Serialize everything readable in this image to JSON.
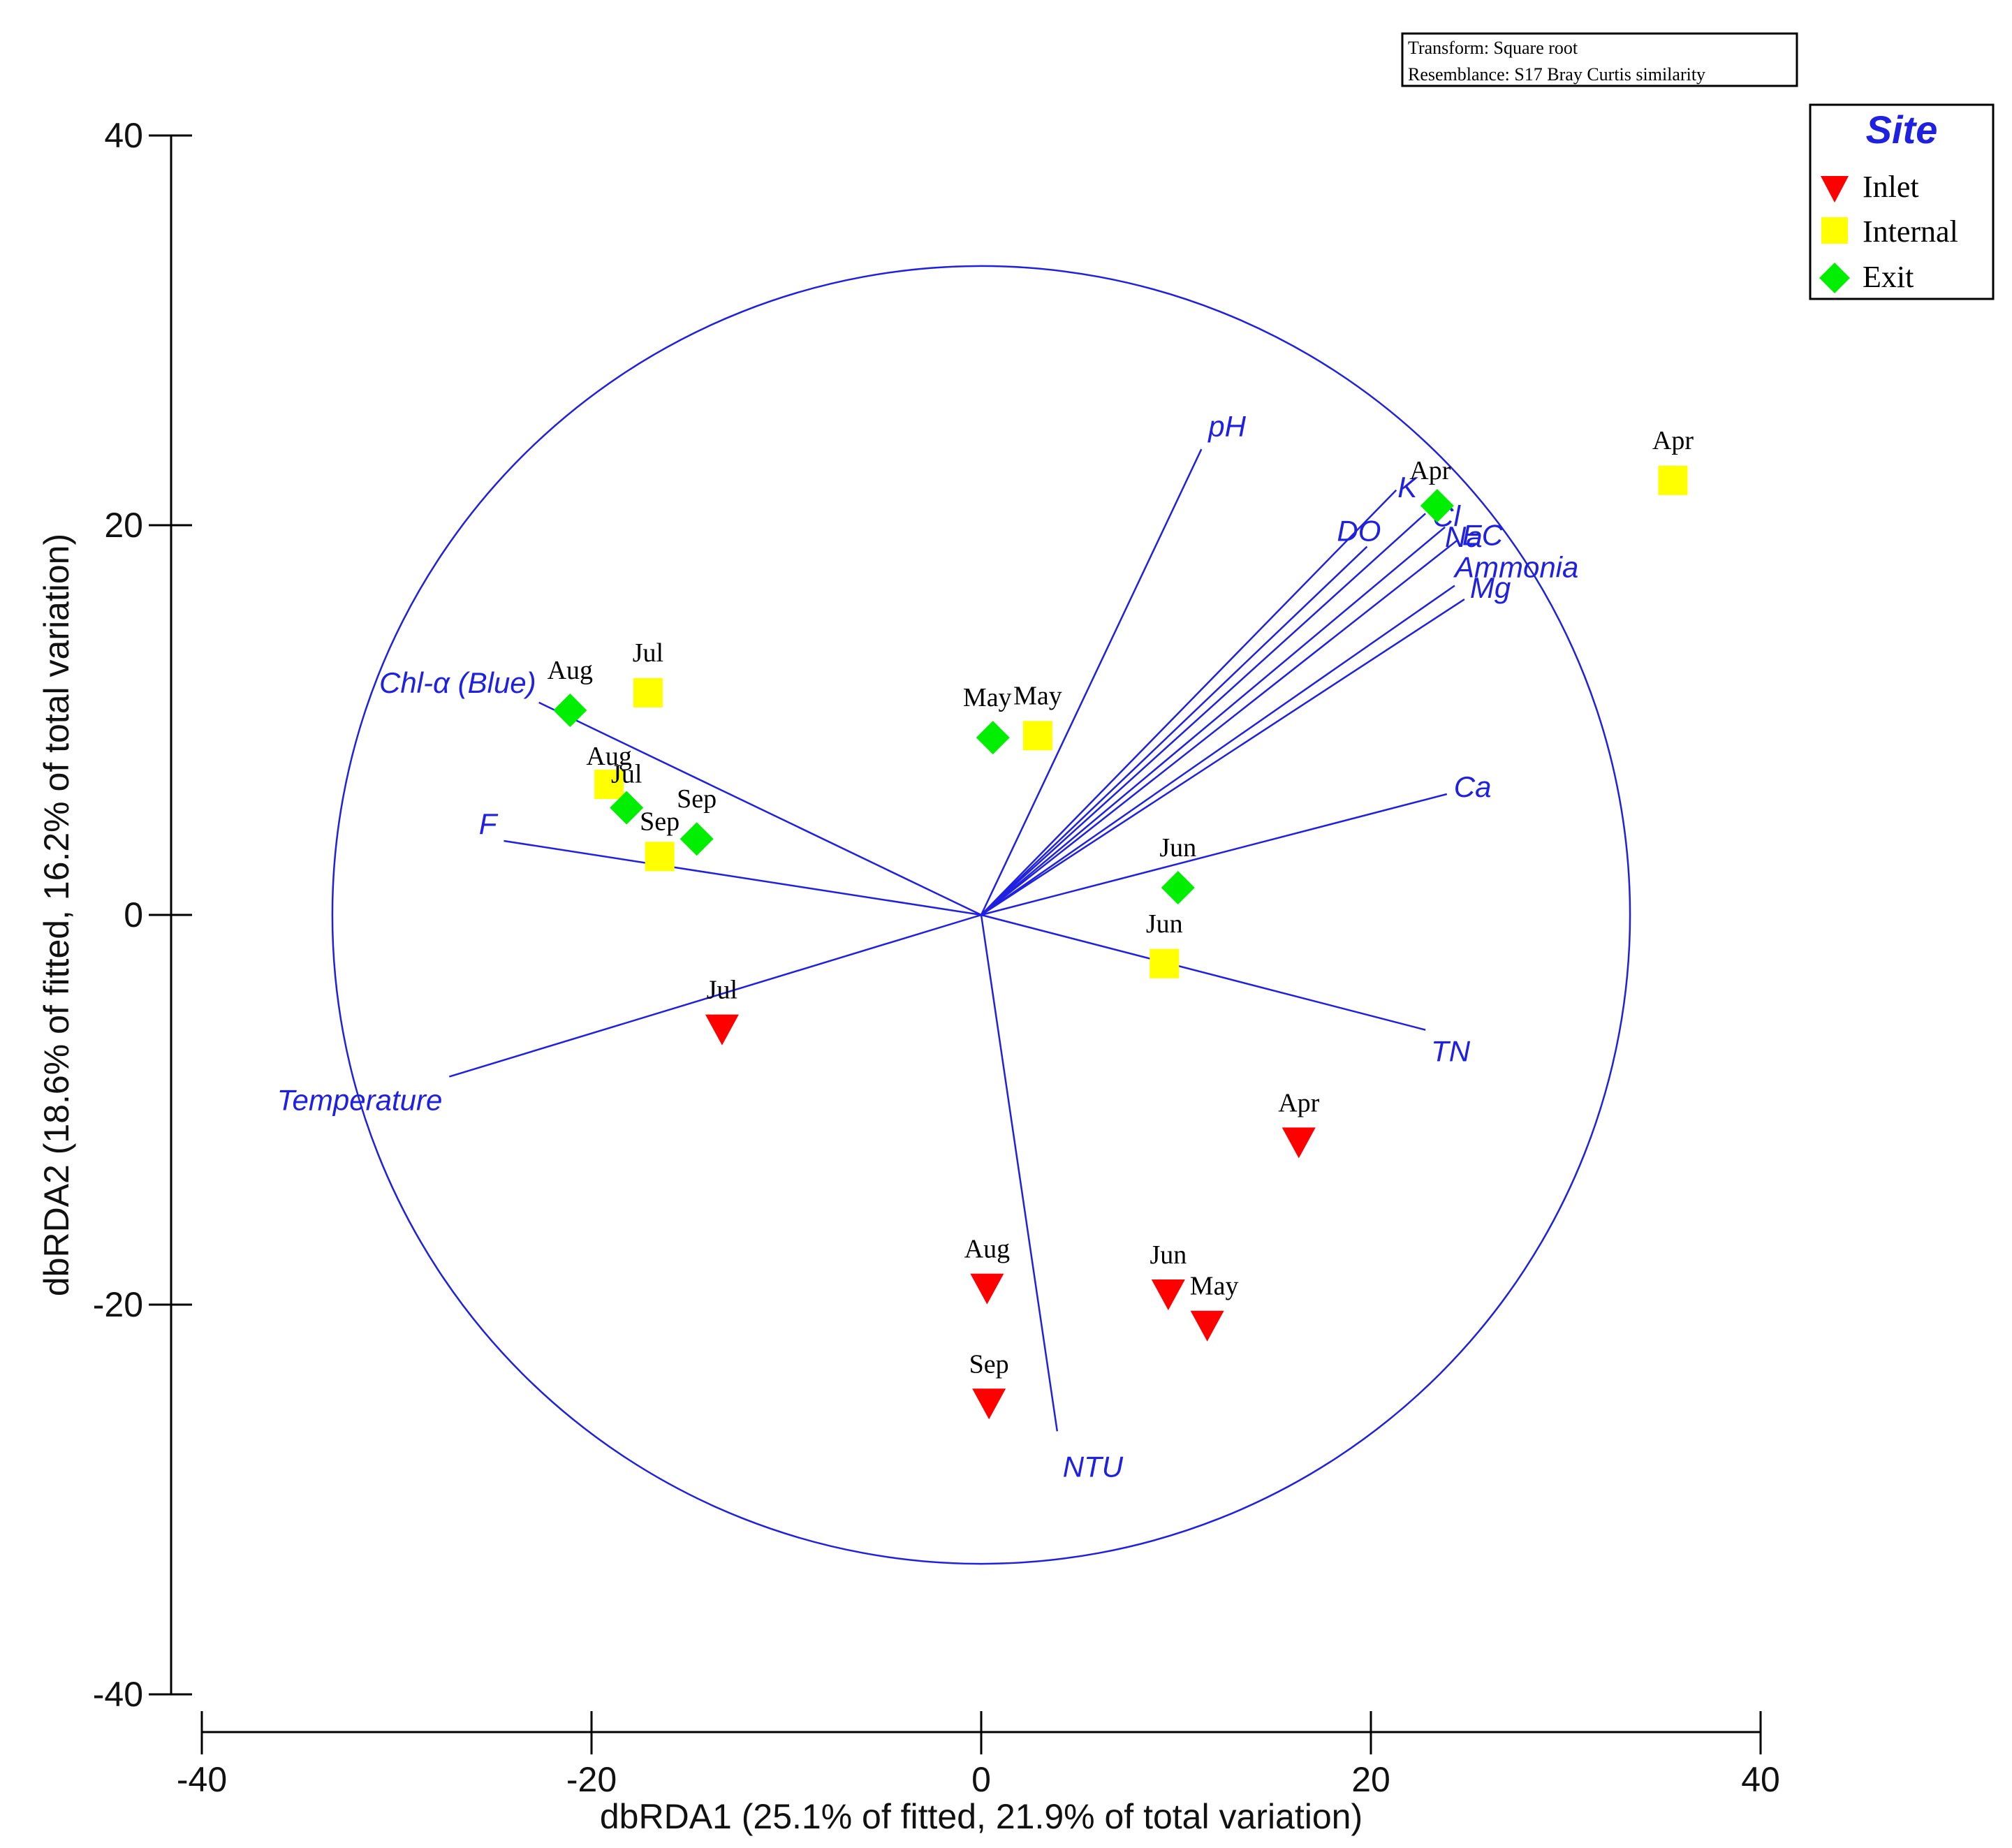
{
  "chart_data": {
    "type": "scatter",
    "title": "",
    "xlabel": "dbRDA1 (25.1% of fitted, 21.9% of total variation)",
    "ylabel": "dbRDA2 (18.6% of fitted, 16.2% of total variation)",
    "xlim": [
      -40,
      40
    ],
    "ylim": [
      -40,
      40
    ],
    "x_ticks": [
      -40,
      -20,
      0,
      20,
      40
    ],
    "y_ticks": [
      -40,
      -20,
      0,
      20,
      40
    ],
    "x_tick_labels": [
      "-40",
      "-20",
      "0",
      "20",
      "40"
    ],
    "y_tick_labels": [
      "-40",
      "-20",
      "0",
      "20",
      "40"
    ],
    "info_box": [
      "Transform: Square root",
      "Resemblance: S17 Bray Curtis similarity"
    ],
    "legend": {
      "title": "Site",
      "position": "top-right",
      "entries": [
        {
          "name": "Inlet",
          "marker": "triangle-down",
          "color": "#ff0000"
        },
        {
          "name": "Internal",
          "marker": "square",
          "color": "#ffff00"
        },
        {
          "name": "Exit",
          "marker": "diamond",
          "color": "#00ee00"
        }
      ]
    },
    "circle_radius": 33.3,
    "vector_color": "#2020e0",
    "vectors": [
      {
        "name": "pH",
        "x": 11.3,
        "y": 23.9
      },
      {
        "name": "K",
        "x": 21.3,
        "y": 21.8
      },
      {
        "name": "Cl",
        "x": 22.8,
        "y": 20.6
      },
      {
        "name": "Na",
        "x": 23.8,
        "y": 19.9
      },
      {
        "name": "DO",
        "x": 19.8,
        "y": 18.9
      },
      {
        "name": "EC",
        "x": 24.4,
        "y": 19.2
      },
      {
        "name": "Ammonia",
        "x": 24.3,
        "y": 16.9
      },
      {
        "name": "Mg",
        "x": 24.8,
        "y": 16.2
      },
      {
        "name": "Ca",
        "x": 23.9,
        "y": 6.2
      },
      {
        "name": "TN",
        "x": 22.8,
        "y": -5.9
      },
      {
        "name": "NTU",
        "x": 3.9,
        "y": -26.5
      },
      {
        "name": "Temperature",
        "x": -27.3,
        "y": -8.3
      },
      {
        "name": "F",
        "x": -24.5,
        "y": 3.8
      },
      {
        "name": "Chl-α (Blue)",
        "x": -22.7,
        "y": 10.9
      }
    ],
    "series": [
      {
        "name": "Inlet",
        "points": [
          {
            "label": "Apr",
            "x": 16.3,
            "y": -11.7
          },
          {
            "label": "May",
            "x": 11.6,
            "y": -21.1
          },
          {
            "label": "Jun",
            "x": 9.6,
            "y": -19.5
          },
          {
            "label": "Jul",
            "x": -13.3,
            "y": -5.9
          },
          {
            "label": "Aug",
            "x": 0.3,
            "y": -19.2
          },
          {
            "label": "Sep",
            "x": 0.4,
            "y": -25.1
          }
        ]
      },
      {
        "name": "Internal",
        "points": [
          {
            "label": "Apr",
            "x": 35.5,
            "y": 22.3
          },
          {
            "label": "May",
            "x": 2.9,
            "y": 9.2
          },
          {
            "label": "Jun",
            "x": 9.4,
            "y": -2.5
          },
          {
            "label": "Jul",
            "x": -17.1,
            "y": 11.4
          },
          {
            "label": "Aug",
            "x": -19.1,
            "y": 6.7
          },
          {
            "label": "Sep",
            "x": -16.5,
            "y": 3.0
          }
        ]
      },
      {
        "name": "Exit",
        "points": [
          {
            "label": "Apr",
            "x": 23.4,
            "y": 21.0
          },
          {
            "label": "May",
            "x": 0.6,
            "y": 9.1
          },
          {
            "label": "Jun",
            "x": 10.1,
            "y": 1.4
          },
          {
            "label": "Jul",
            "x": -18.2,
            "y": 5.5
          },
          {
            "label": "Aug",
            "x": -21.1,
            "y": 10.5
          },
          {
            "label": "Sep",
            "x": -14.6,
            "y": 3.9
          }
        ]
      }
    ]
  }
}
